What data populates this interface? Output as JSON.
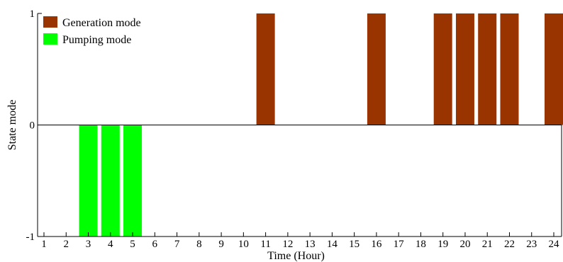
{
  "chart_data": {
    "type": "bar",
    "xlabel": "Time (Hour)",
    "ylabel": "State mode",
    "categories": [
      1,
      2,
      3,
      4,
      5,
      6,
      7,
      8,
      9,
      10,
      11,
      12,
      13,
      14,
      15,
      16,
      17,
      18,
      19,
      20,
      21,
      22,
      23,
      24
    ],
    "ylim": [
      -1,
      1
    ],
    "yticks": [
      -1,
      0,
      1
    ],
    "grid": false,
    "legend_position": "top-left",
    "series": [
      {
        "name": "Generation mode",
        "color": "#993300",
        "values": [
          0,
          0,
          0,
          0,
          0,
          0,
          0,
          0,
          0,
          0,
          1,
          0,
          0,
          0,
          0,
          1,
          0,
          0,
          1,
          1,
          1,
          1,
          0,
          1
        ]
      },
      {
        "name": "Pumping mode",
        "color": "#00ff00",
        "values": [
          0,
          0,
          -1,
          -1,
          -1,
          0,
          0,
          0,
          0,
          0,
          0,
          0,
          0,
          0,
          0,
          0,
          0,
          0,
          0,
          0,
          0,
          0,
          0,
          0
        ]
      }
    ]
  }
}
